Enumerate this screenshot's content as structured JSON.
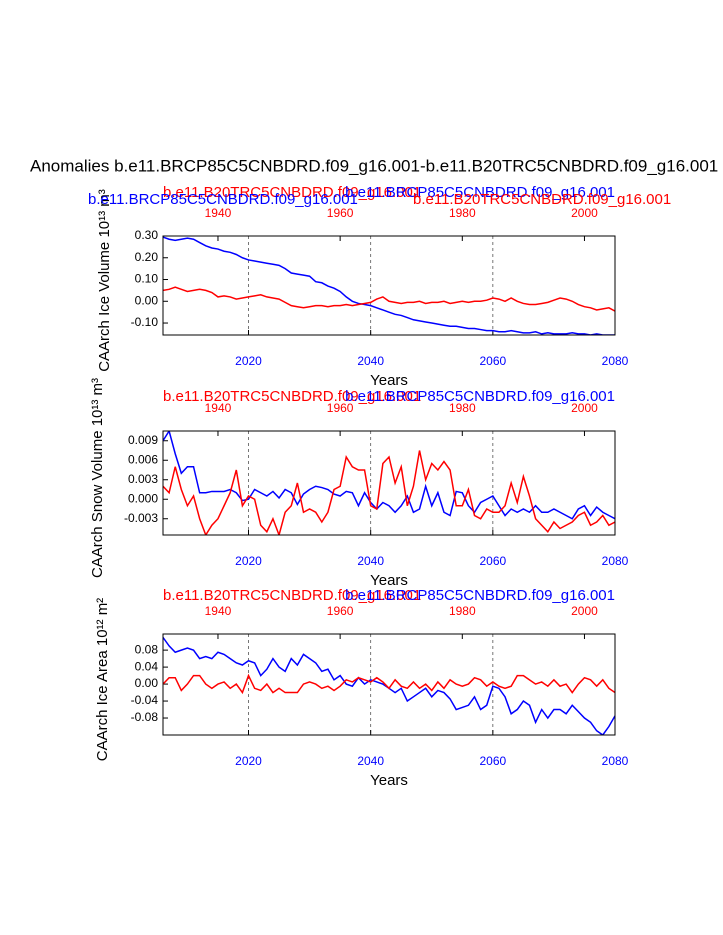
{
  "title": "Anomalies b.e11.BRCP85C5CNBDRD.f09_g16.001-b.e11.B20TRC5CNBDRD.f09_g16.001",
  "chart_data": [
    {
      "type": "line",
      "ylabel": "CAArch Ice Volume 10¹³ m³",
      "xlabel": "Years",
      "x": [
        2006,
        2007,
        2008,
        2009,
        2010,
        2011,
        2012,
        2013,
        2014,
        2015,
        2016,
        2017,
        2018,
        2019,
        2020,
        2021,
        2022,
        2023,
        2024,
        2025,
        2026,
        2027,
        2028,
        2029,
        2030,
        2031,
        2032,
        2033,
        2034,
        2035,
        2036,
        2037,
        2038,
        2039,
        2040,
        2041,
        2042,
        2043,
        2044,
        2045,
        2046,
        2047,
        2048,
        2049,
        2050,
        2051,
        2052,
        2053,
        2054,
        2055,
        2056,
        2057,
        2058,
        2059,
        2060,
        2061,
        2062,
        2063,
        2064,
        2065,
        2066,
        2067,
        2068,
        2069,
        2070,
        2071,
        2072,
        2073,
        2074,
        2075,
        2076,
        2077,
        2078,
        2079,
        2080
      ],
      "x2": [
        1931,
        1932,
        1933,
        1934,
        1935,
        1936,
        1937,
        1938,
        1939,
        1940,
        1941,
        1942,
        1943,
        1944,
        1945,
        1946,
        1947,
        1948,
        1949,
        1950,
        1951,
        1952,
        1953,
        1954,
        1955,
        1956,
        1957,
        1958,
        1959,
        1960,
        1961,
        1962,
        1963,
        1964,
        1965,
        1966,
        1967,
        1968,
        1969,
        1970,
        1971,
        1972,
        1973,
        1974,
        1975,
        1976,
        1977,
        1978,
        1979,
        1980,
        1981,
        1982,
        1983,
        1984,
        1985,
        1986,
        1987,
        1988,
        1989,
        1990,
        1991,
        1992,
        1993,
        1994,
        1995,
        1996,
        1997,
        1998,
        1999,
        2000,
        2001,
        2002,
        2003,
        2004,
        2005
      ],
      "xlim": [
        2006,
        2080
      ],
      "xticks": [
        2020,
        2040,
        2060,
        2080
      ],
      "x2lim": [
        1931,
        2005
      ],
      "x2ticks": [
        1940,
        1960,
        1980,
        2000
      ],
      "ylim": [
        -0.155,
        0.3
      ],
      "yticks": [
        {
          "value": 0.3,
          "label": "0.30"
        },
        {
          "value": 0.2,
          "label": "0.20"
        },
        {
          "value": 0.1,
          "label": "0.10"
        },
        {
          "value": 0,
          "label": "0.00"
        },
        {
          "value": -0.1,
          "label": "-0.10"
        }
      ],
      "xgrid": true,
      "series": [
        {
          "name": "b.e11.BRCP85C5CNBDRD.f09_g16.001",
          "color": "#0000ff",
          "values": [
            0.295,
            0.285,
            0.28,
            0.285,
            0.29,
            0.285,
            0.27,
            0.255,
            0.245,
            0.24,
            0.23,
            0.225,
            0.215,
            0.2,
            0.19,
            0.185,
            0.18,
            0.175,
            0.17,
            0.165,
            0.15,
            0.13,
            0.125,
            0.12,
            0.115,
            0.09,
            0.085,
            0.07,
            0.06,
            0.045,
            0.02,
            0,
            -0.01,
            -0.015,
            -0.02,
            -0.03,
            -0.04,
            -0.05,
            -0.06,
            -0.065,
            -0.075,
            -0.085,
            -0.09,
            -0.095,
            -0.1,
            -0.105,
            -0.11,
            -0.115,
            -0.115,
            -0.12,
            -0.125,
            -0.125,
            -0.13,
            -0.135,
            -0.135,
            -0.14,
            -0.14,
            -0.135,
            -0.14,
            -0.145,
            -0.145,
            -0.14,
            -0.15,
            -0.145,
            -0.15,
            -0.15,
            -0.15,
            -0.145,
            -0.15,
            -0.15,
            -0.155,
            -0.15,
            -0.155,
            -0.155,
            -0.155
          ]
        },
        {
          "name": "b.e11.B20TRC5CNBDRD.f09_g16.001",
          "color": "#ff0000",
          "axis": "x2",
          "values": [
            0.05,
            0.055,
            0.065,
            0.055,
            0.045,
            0.05,
            0.055,
            0.05,
            0.04,
            0.02,
            0.025,
            0.02,
            0.01,
            0.015,
            0.02,
            0.025,
            0.03,
            0.02,
            0.015,
            0.01,
            -0.005,
            -0.02,
            -0.025,
            -0.03,
            -0.025,
            -0.02,
            -0.02,
            -0.025,
            -0.02,
            -0.02,
            -0.015,
            -0.02,
            -0.015,
            -0.01,
            -0.005,
            0.01,
            0.02,
            0,
            -0.005,
            -0.01,
            -0.005,
            -0.005,
            0,
            -0.01,
            -0.005,
            -0.005,
            0,
            -0.01,
            -0.005,
            0,
            -0.005,
            0,
            0,
            0.005,
            0.015,
            0.01,
            0,
            0.015,
            0,
            -0.01,
            -0.015,
            -0.015,
            -0.01,
            -0.005,
            0.005,
            0.015,
            0.01,
            0,
            -0.015,
            -0.025,
            -0.03,
            -0.04,
            -0.035,
            -0.03,
            -0.045
          ]
        }
      ]
    },
    {
      "type": "line",
      "ylabel": "CAArch Snow Volume 10¹³ m³",
      "xlabel": "Years",
      "x": [
        2006,
        2007,
        2008,
        2009,
        2010,
        2011,
        2012,
        2013,
        2014,
        2015,
        2016,
        2017,
        2018,
        2019,
        2020,
        2021,
        2022,
        2023,
        2024,
        2025,
        2026,
        2027,
        2028,
        2029,
        2030,
        2031,
        2032,
        2033,
        2034,
        2035,
        2036,
        2037,
        2038,
        2039,
        2040,
        2041,
        2042,
        2043,
        2044,
        2045,
        2046,
        2047,
        2048,
        2049,
        2050,
        2051,
        2052,
        2053,
        2054,
        2055,
        2056,
        2057,
        2058,
        2059,
        2060,
        2061,
        2062,
        2063,
        2064,
        2065,
        2066,
        2067,
        2068,
        2069,
        2070,
        2071,
        2072,
        2073,
        2074,
        2075,
        2076,
        2077,
        2078,
        2079,
        2080
      ],
      "x2": [
        1931,
        1932,
        1933,
        1934,
        1935,
        1936,
        1937,
        1938,
        1939,
        1940,
        1941,
        1942,
        1943,
        1944,
        1945,
        1946,
        1947,
        1948,
        1949,
        1950,
        1951,
        1952,
        1953,
        1954,
        1955,
        1956,
        1957,
        1958,
        1959,
        1960,
        1961,
        1962,
        1963,
        1964,
        1965,
        1966,
        1967,
        1968,
        1969,
        1970,
        1971,
        1972,
        1973,
        1974,
        1975,
        1976,
        1977,
        1978,
        1979,
        1980,
        1981,
        1982,
        1983,
        1984,
        1985,
        1986,
        1987,
        1988,
        1989,
        1990,
        1991,
        1992,
        1993,
        1994,
        1995,
        1996,
        1997,
        1998,
        1999,
        2000,
        2001,
        2002,
        2003,
        2004,
        2005
      ],
      "xlim": [
        2006,
        2080
      ],
      "xticks": [
        2020,
        2040,
        2060,
        2080
      ],
      "x2lim": [
        1931,
        2005
      ],
      "x2ticks": [
        1940,
        1960,
        1980,
        2000
      ],
      "ylim": [
        -0.0055,
        0.0105
      ],
      "yticks": [
        0.009,
        0.006,
        0.003,
        {
          "value": 0,
          "label": "0.000"
        },
        -0.003
      ],
      "xgrid": true,
      "series": [
        {
          "name": "b.e11.BRCP85C5CNBDRD.f09_g16.001",
          "color": "#0000ff",
          "values": [
            0.009,
            0.0105,
            0.007,
            0.004,
            0.005,
            0.005,
            0.001,
            0.001,
            0.0012,
            0.0012,
            0.0012,
            0.0015,
            0.001,
            -0.0002,
            0,
            0.0015,
            0.001,
            0.0005,
            0.0012,
            0.0002,
            0.0015,
            0.001,
            -0.0008,
            0.0008,
            0.0015,
            0.002,
            0.0018,
            0.0015,
            0.0008,
            0.0005,
            0.0012,
            0.001,
            -0.001,
            0.001,
            -0.0005,
            -0.0015,
            -0.0005,
            -0.001,
            -0.002,
            -0.001,
            0.0005,
            -0.002,
            -0.0015,
            0.002,
            -0.001,
            0.001,
            -0.002,
            -0.0025,
            0.0012,
            0.001,
            -0.001,
            -0.002,
            -0.0005,
            0,
            0.0005,
            -0.001,
            -0.0025,
            -0.0015,
            -0.002,
            -0.0015,
            -0.002,
            -0.001,
            -0.002,
            -0.002,
            -0.0015,
            -0.002,
            -0.0025,
            -0.003,
            -0.0015,
            -0.001,
            -0.0025,
            -0.0012,
            -0.002,
            -0.0025,
            -0.003
          ]
        },
        {
          "name": "b.e11.B20TRC5CNBDRD.f09_g16.001",
          "color": "#ff0000",
          "axis": "x2",
          "values": [
            0.002,
            0.001,
            0.005,
            0.0015,
            -0.001,
            0.0005,
            -0.003,
            -0.0055,
            -0.004,
            -0.003,
            -0.001,
            0.001,
            0.0045,
            -0.001,
            0.0005,
            0,
            -0.004,
            -0.005,
            -0.003,
            -0.0055,
            -0.002,
            -0.001,
            0.0025,
            -0.002,
            -0.0015,
            -0.002,
            -0.0035,
            -0.002,
            0.0015,
            0.002,
            0.0065,
            0.005,
            0.0045,
            0.0045,
            -0.001,
            -0.0015,
            0.0055,
            0.0065,
            0.0025,
            0.005,
            -0.001,
            0.002,
            0.0075,
            0.003,
            0.0055,
            0.0045,
            0.0058,
            0.0045,
            -0.001,
            -0.001,
            0.0015,
            -0.0025,
            -0.003,
            -0.0015,
            -0.002,
            -0.002,
            -0.001,
            0.0025,
            -0.0005,
            0.0035,
            0.0005,
            -0.003,
            -0.004,
            -0.005,
            -0.0035,
            -0.0045,
            -0.004,
            -0.0035,
            -0.0025,
            -0.002,
            -0.004,
            -0.0035,
            -0.0025,
            -0.004,
            -0.0035
          ]
        }
      ]
    },
    {
      "type": "line",
      "ylabel": "CAArch Ice Area 10¹² m²",
      "xlabel": "Years",
      "x": [
        2006,
        2007,
        2008,
        2009,
        2010,
        2011,
        2012,
        2013,
        2014,
        2015,
        2016,
        2017,
        2018,
        2019,
        2020,
        2021,
        2022,
        2023,
        2024,
        2025,
        2026,
        2027,
        2028,
        2029,
        2030,
        2031,
        2032,
        2033,
        2034,
        2035,
        2036,
        2037,
        2038,
        2039,
        2040,
        2041,
        2042,
        2043,
        2044,
        2045,
        2046,
        2047,
        2048,
        2049,
        2050,
        2051,
        2052,
        2053,
        2054,
        2055,
        2056,
        2057,
        2058,
        2059,
        2060,
        2061,
        2062,
        2063,
        2064,
        2065,
        2066,
        2067,
        2068,
        2069,
        2070,
        2071,
        2072,
        2073,
        2074,
        2075,
        2076,
        2077,
        2078,
        2079,
        2080
      ],
      "x2": [
        1931,
        1932,
        1933,
        1934,
        1935,
        1936,
        1937,
        1938,
        1939,
        1940,
        1941,
        1942,
        1943,
        1944,
        1945,
        1946,
        1947,
        1948,
        1949,
        1950,
        1951,
        1952,
        1953,
        1954,
        1955,
        1956,
        1957,
        1958,
        1959,
        1960,
        1961,
        1962,
        1963,
        1964,
        1965,
        1966,
        1967,
        1968,
        1969,
        1970,
        1971,
        1972,
        1973,
        1974,
        1975,
        1976,
        1977,
        1978,
        1979,
        1980,
        1981,
        1982,
        1983,
        1984,
        1985,
        1986,
        1987,
        1988,
        1989,
        1990,
        1991,
        1992,
        1993,
        1994,
        1995,
        1996,
        1997,
        1998,
        1999,
        2000,
        2001,
        2002,
        2003,
        2004,
        2005
      ],
      "xlim": [
        2006,
        2080
      ],
      "xticks": [
        2020,
        2040,
        2060,
        2080
      ],
      "x2lim": [
        1931,
        2005
      ],
      "x2ticks": [
        1940,
        1960,
        1980,
        2000
      ],
      "ylim": [
        -0.12,
        0.118
      ],
      "yticks": [
        0.08,
        0.04,
        {
          "value": 0,
          "label": "0.00"
        },
        -0.04,
        -0.08
      ],
      "xgrid": true,
      "series": [
        {
          "name": "b.e11.BRCP85C5CNBDRD.f09_g16.001",
          "color": "#0000ff",
          "values": [
            0.11,
            0.09,
            0.075,
            0.08,
            0.085,
            0.08,
            0.06,
            0.065,
            0.06,
            0.075,
            0.07,
            0.06,
            0.05,
            0.045,
            0.055,
            0.05,
            0.02,
            0.035,
            0.06,
            0.04,
            0.03,
            0.06,
            0.045,
            0.07,
            0.06,
            0.05,
            0.03,
            0.035,
            0.01,
            0.02,
            0,
            -0.005,
            0.015,
            0,
            0.01,
            0.005,
            0,
            -0.01,
            -0.02,
            -0.01,
            -0.04,
            -0.03,
            -0.02,
            -0.01,
            -0.03,
            -0.015,
            -0.02,
            -0.035,
            -0.06,
            -0.055,
            -0.05,
            -0.03,
            -0.06,
            -0.05,
            -0.005,
            -0.01,
            -0.03,
            -0.07,
            -0.06,
            -0.04,
            -0.05,
            -0.09,
            -0.06,
            -0.08,
            -0.06,
            -0.06,
            -0.07,
            -0.05,
            -0.065,
            -0.08,
            -0.09,
            -0.11,
            -0.12,
            -0.1,
            -0.075
          ]
        },
        {
          "name": "b.e11.B20TRC5CNBDRD.f09_g16.001",
          "color": "#ff0000",
          "axis": "x2",
          "values": [
            0,
            0.015,
            0.015,
            -0.015,
            0,
            0.02,
            0.02,
            0,
            -0.01,
            0,
            0.005,
            -0.01,
            0,
            -0.02,
            0.02,
            -0.01,
            -0.015,
            0,
            -0.02,
            -0.01,
            -0.02,
            -0.02,
            -0.02,
            0,
            0.005,
            0,
            -0.01,
            -0.005,
            -0.015,
            -0.005,
            0.01,
            0.005,
            0.015,
            0.01,
            0.005,
            0.015,
            0.005,
            -0.01,
            0.01,
            -0.005,
            -0.01,
            0.005,
            -0.01,
            0,
            -0.015,
            0.005,
            -0.01,
            0.01,
            0,
            -0.005,
            0,
            0.015,
            0.01,
            -0.005,
            0.005,
            -0.005,
            -0.01,
            -0.005,
            0.02,
            0.02,
            0.01,
            0,
            0.005,
            -0.005,
            0.01,
            -0.005,
            0,
            -0.02,
            0,
            0.015,
            0.01,
            -0.005,
            0.01,
            -0.01,
            -0.02
          ]
        }
      ]
    }
  ]
}
